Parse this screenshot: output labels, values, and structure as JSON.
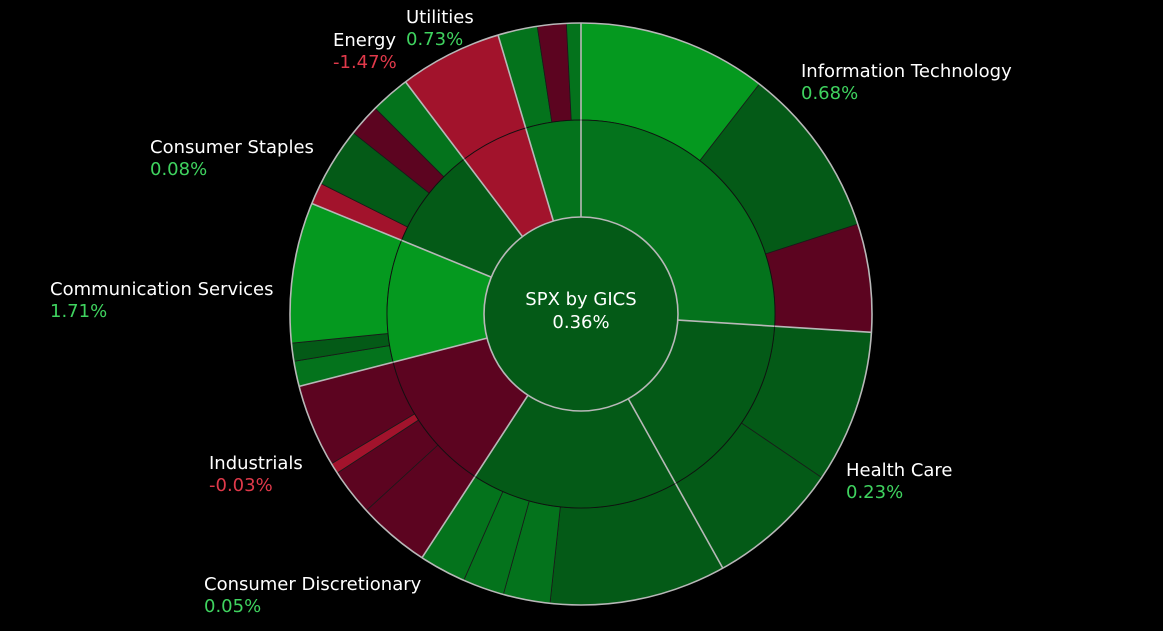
{
  "chart_data": {
    "type": "sunburst",
    "center": {
      "title": "SPX by GICS",
      "value": "0.36%"
    },
    "colors": {
      "pos_bright": "#05991f",
      "pos_mid": "#04731c",
      "pos_dark": "#045a17",
      "neg_bright": "#a2132c",
      "neg_dark": "#5c0420",
      "border": "#b8b8b8",
      "positive_text": "#3fd35f",
      "negative_text": "#e0394a"
    },
    "sectors": [
      {
        "name": "Information Technology",
        "change": "0.68%",
        "direction": "positive"
      },
      {
        "name": "Health Care",
        "change": "0.23%",
        "direction": "positive"
      },
      {
        "name": "Consumer Discretionary",
        "change": "0.05%",
        "direction": "positive"
      },
      {
        "name": "Industrials",
        "change": "-0.03%",
        "direction": "negative"
      },
      {
        "name": "Communication Services",
        "change": "1.71%",
        "direction": "positive"
      },
      {
        "name": "Consumer Staples",
        "change": "0.08%",
        "direction": "positive"
      },
      {
        "name": "Energy",
        "change": "-1.47%",
        "direction": "negative"
      },
      {
        "name": "Utilities",
        "change": "0.73%",
        "direction": "positive"
      }
    ],
    "inner_ring": [
      {
        "sector": "Information Technology",
        "share": 26.0,
        "tone": "pos_mid"
      },
      {
        "sector": "Health Care",
        "share": 15.9,
        "tone": "pos_dark"
      },
      {
        "sector": "Consumer Discretionary",
        "share": 17.3,
        "tone": "pos_dark"
      },
      {
        "sector": "Industrials",
        "share": 11.8,
        "tone": "neg_dark"
      },
      {
        "sector": "Communication Services",
        "share": 10.2,
        "tone": "pos_bright"
      },
      {
        "sector": "Consumer Staples",
        "share": 8.5,
        "tone": "pos_dark"
      },
      {
        "sector": "Energy",
        "share": 5.7,
        "tone": "neg_bright"
      },
      {
        "sector": "Utilities",
        "share": 4.6,
        "tone": "pos_mid"
      }
    ],
    "outer_ring": [
      {
        "sector": "Information Technology",
        "share": 10.5,
        "tone": "pos_bright"
      },
      {
        "sector": "Information Technology",
        "share": 9.5,
        "tone": "pos_dark"
      },
      {
        "sector": "Information Technology",
        "share": 6.0,
        "tone": "neg_dark"
      },
      {
        "sector": "Health Care",
        "share": 8.5,
        "tone": "pos_dark"
      },
      {
        "sector": "Health Care",
        "share": 7.4,
        "tone": "pos_dark"
      },
      {
        "sector": "Consumer Discretionary",
        "share": 9.8,
        "tone": "pos_dark"
      },
      {
        "sector": "Consumer Discretionary",
        "share": 2.6,
        "tone": "pos_mid"
      },
      {
        "sector": "Consumer Discretionary",
        "share": 2.3,
        "tone": "pos_mid"
      },
      {
        "sector": "Consumer Discretionary",
        "share": 2.6,
        "tone": "pos_mid"
      },
      {
        "sector": "Industrials",
        "share": 4.0,
        "tone": "neg_dark"
      },
      {
        "sector": "Industrials",
        "share": 2.6,
        "tone": "neg_dark"
      },
      {
        "sector": "Industrials",
        "share": 0.6,
        "tone": "neg_bright"
      },
      {
        "sector": "Industrials",
        "share": 4.6,
        "tone": "neg_dark"
      },
      {
        "sector": "Communication Services",
        "share": 1.4,
        "tone": "pos_mid"
      },
      {
        "sector": "Communication Services",
        "share": 1.0,
        "tone": "pos_dark"
      },
      {
        "sector": "Communication Services",
        "share": 7.8,
        "tone": "pos_bright"
      },
      {
        "sector": "Consumer Staples",
        "share": 1.2,
        "tone": "neg_bright"
      },
      {
        "sector": "Consumer Staples",
        "share": 3.3,
        "tone": "pos_dark"
      },
      {
        "sector": "Consumer Staples",
        "share": 1.8,
        "tone": "neg_dark"
      },
      {
        "sector": "Consumer Staples",
        "share": 2.2,
        "tone": "pos_mid"
      },
      {
        "sector": "Energy",
        "share": 5.7,
        "tone": "neg_bright"
      },
      {
        "sector": "Utilities",
        "share": 2.2,
        "tone": "pos_mid"
      },
      {
        "sector": "Utilities",
        "share": 1.6,
        "tone": "neg_dark"
      },
      {
        "sector": "Utilities",
        "share": 0.8,
        "tone": "pos_mid"
      }
    ]
  }
}
